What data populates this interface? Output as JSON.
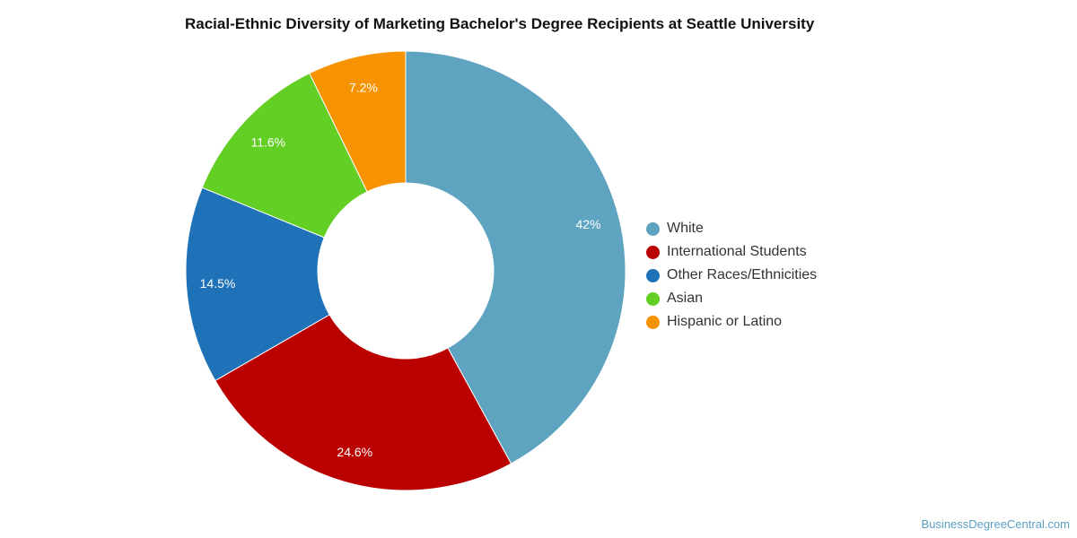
{
  "chart_data": {
    "type": "pie",
    "title": "Racial-Ethnic Diversity of Marketing Bachelor's Degree Recipients at Seattle University",
    "variant": "donut",
    "legend_position": "right",
    "slices": [
      {
        "name": "White",
        "value": 42,
        "label": "42%",
        "color": "#5ea3c0"
      },
      {
        "name": "International Students",
        "value": 24.6,
        "label": "24.6%",
        "color": "#bb0000"
      },
      {
        "name": "Other Races/Ethnicities",
        "value": 14.5,
        "label": "14.5%",
        "color": "#1f72b8"
      },
      {
        "name": "Asian",
        "value": 11.6,
        "label": "11.6%",
        "color": "#63ce24"
      },
      {
        "name": "Hispanic or Latino",
        "value": 7.2,
        "label": "7.2%",
        "color": "#f79200"
      }
    ]
  },
  "watermark": "BusinessDegreeCentral.com"
}
